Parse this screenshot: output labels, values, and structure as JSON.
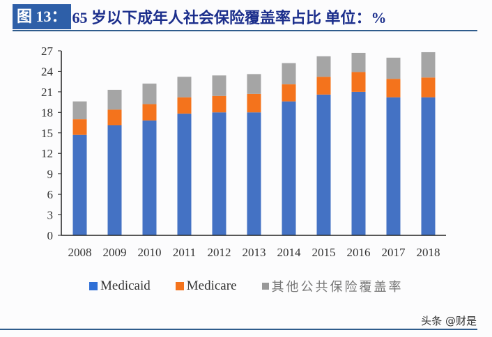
{
  "header": {
    "badge": "图 13：",
    "title": "65 岁以下成年人社会保险覆盖率占比  单位：%"
  },
  "watermark": "头条 @财是",
  "chart_data": {
    "type": "bar",
    "stacked": true,
    "categories": [
      "2008",
      "2009",
      "2010",
      "2011",
      "2012",
      "2013",
      "2014",
      "2015",
      "2016",
      "2017",
      "2018"
    ],
    "series": [
      {
        "name": "Medicaid",
        "color": "#4472c4",
        "values": [
          14.7,
          16.1,
          16.8,
          17.8,
          18.0,
          18.0,
          19.6,
          20.6,
          21.0,
          20.2,
          20.2
        ]
      },
      {
        "name": "Medicare",
        "color": "#f4731c",
        "values": [
          2.3,
          2.3,
          2.4,
          2.4,
          2.4,
          2.7,
          2.5,
          2.6,
          2.9,
          2.7,
          2.9
        ]
      },
      {
        "name": "其他公共保险覆盖率",
        "color": "#a5a5a5",
        "values": [
          2.6,
          2.9,
          3.0,
          3.0,
          3.0,
          2.9,
          3.1,
          3.0,
          2.8,
          3.1,
          3.7
        ]
      }
    ],
    "ylim": [
      0,
      27
    ],
    "yticks": [
      "0",
      "3",
      "6",
      "9",
      "12",
      "15",
      "18",
      "21",
      "24",
      "27"
    ],
    "grid": false,
    "legend": "bottom"
  }
}
